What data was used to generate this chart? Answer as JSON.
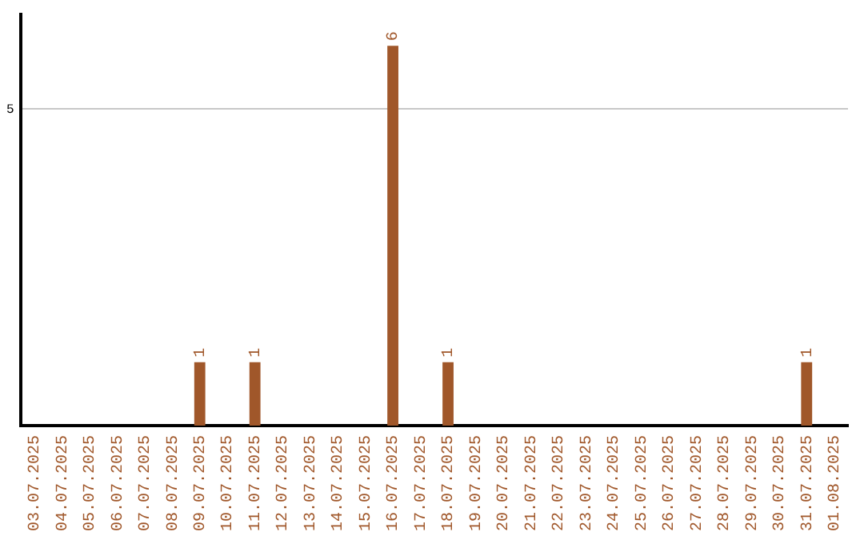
{
  "chart_data": {
    "type": "bar",
    "categories": [
      "03.07.2025",
      "04.07.2025",
      "05.07.2025",
      "06.07.2025",
      "07.07.2025",
      "08.07.2025",
      "09.07.2025",
      "10.07.2025",
      "11.07.2025",
      "12.07.2025",
      "13.07.2025",
      "14.07.2025",
      "15.07.2025",
      "16.07.2025",
      "17.07.2025",
      "18.07.2025",
      "19.07.2025",
      "20.07.2025",
      "21.07.2025",
      "22.07.2025",
      "23.07.2025",
      "24.07.2025",
      "25.07.2025",
      "26.07.2025",
      "27.07.2025",
      "28.07.2025",
      "29.07.2025",
      "30.07.2025",
      "31.07.2025",
      "01.08.2025"
    ],
    "values": [
      0,
      0,
      0,
      0,
      0,
      0,
      1,
      0,
      1,
      0,
      0,
      0,
      0,
      6,
      0,
      1,
      0,
      0,
      0,
      0,
      0,
      0,
      0,
      0,
      0,
      0,
      0,
      0,
      1,
      0
    ],
    "value_labels": [
      null,
      null,
      null,
      null,
      null,
      null,
      "1",
      null,
      "1",
      null,
      null,
      null,
      null,
      "6",
      null,
      "1",
      null,
      null,
      null,
      null,
      null,
      null,
      null,
      null,
      null,
      null,
      null,
      null,
      "1",
      null
    ],
    "color": "#a0572a",
    "ylim": [
      0,
      6.5
    ],
    "yticks": [
      5
    ],
    "grid": "y",
    "legend": false
  }
}
